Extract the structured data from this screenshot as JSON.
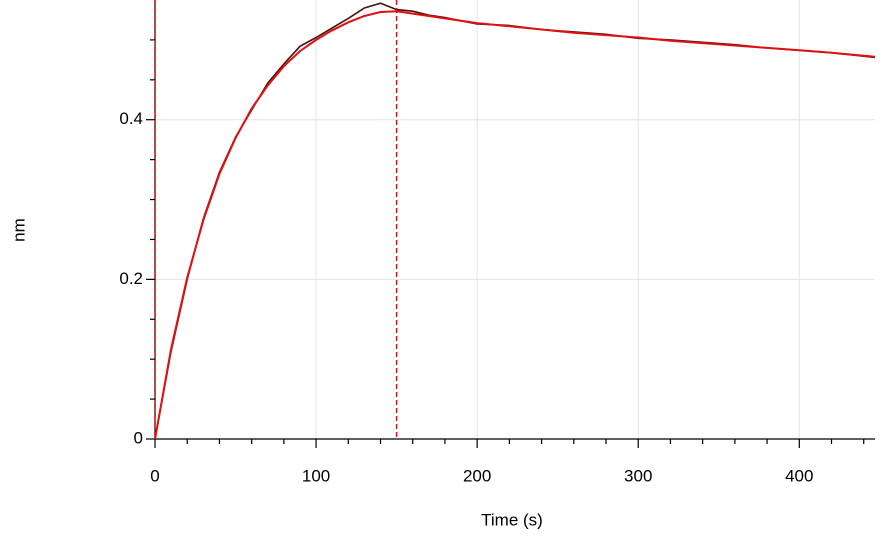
{
  "chart_data": {
    "type": "line",
    "x_label": "Time (s)",
    "y_label": "nm",
    "x": [
      0,
      10,
      20,
      30,
      40,
      50,
      60,
      70,
      80,
      90,
      100,
      110,
      120,
      130,
      140,
      150,
      160,
      170,
      180,
      190,
      200,
      220,
      240,
      260,
      280,
      300,
      320,
      340,
      360,
      380,
      400,
      420,
      447
    ],
    "series": [
      {
        "color": "#4a1010",
        "values": [
          0,
          0.11,
          0.2,
          0.276,
          0.334,
          0.378,
          0.412,
          0.446,
          0.47,
          0.492,
          0.503,
          0.515,
          0.527,
          0.54,
          0.546,
          0.538,
          0.536,
          0.531,
          0.528,
          0.524,
          0.52,
          0.518,
          0.513,
          0.51,
          0.507,
          0.502,
          0.5,
          0.497,
          0.494,
          0.49,
          0.487,
          0.484,
          0.478
        ]
      },
      {
        "color": "#e01010",
        "values": [
          0,
          0.113,
          0.202,
          0.274,
          0.332,
          0.377,
          0.414,
          0.443,
          0.467,
          0.486,
          0.5,
          0.512,
          0.522,
          0.53,
          0.535,
          0.536,
          0.533,
          0.53,
          0.527,
          0.524,
          0.521,
          0.517,
          0.513,
          0.509,
          0.506,
          0.503,
          0.499,
          0.496,
          0.493,
          0.49,
          0.487,
          0.484,
          0.479
        ]
      }
    ],
    "vlines": [
      0,
      150
    ],
    "vline_color": "#e01010",
    "xlim": [
      0,
      447
    ],
    "ylim": [
      0,
      0.55
    ],
    "xticks": [
      0,
      100,
      200,
      300,
      400
    ],
    "yticks": [
      0,
      0.2,
      0.4
    ],
    "xminorticks": [
      20,
      40,
      60,
      80,
      120,
      140,
      160,
      180,
      220,
      240,
      260,
      280,
      320,
      340,
      360,
      380,
      420,
      440
    ],
    "yminorticks": [
      0.05,
      0.1,
      0.15,
      0.25,
      0.3,
      0.35,
      0.45,
      0.5
    ],
    "grid": true
  }
}
